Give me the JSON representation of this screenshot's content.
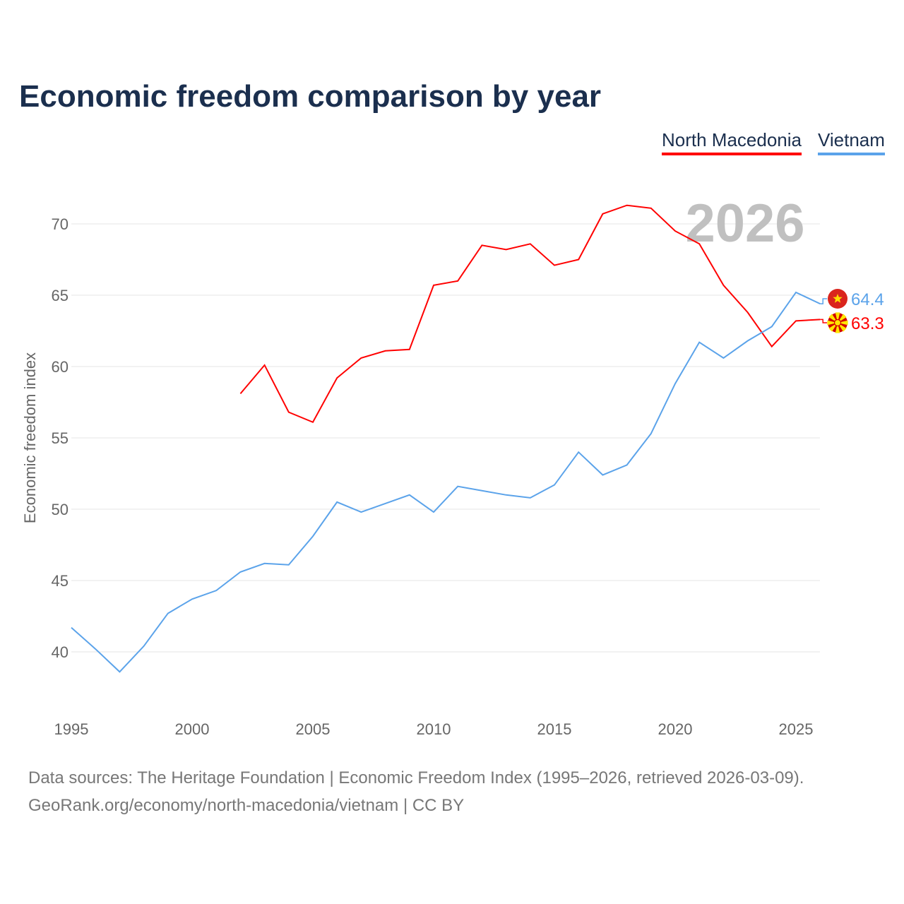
{
  "chart_data": {
    "type": "line",
    "title": "Economic freedom comparison by year",
    "xlabel": "",
    "ylabel": "Economic freedom index",
    "year_label": "2026",
    "xlim": [
      1995,
      2026
    ],
    "ylim": [
      36,
      73
    ],
    "x_ticks": [
      1995,
      2000,
      2005,
      2010,
      2015,
      2020,
      2025
    ],
    "y_ticks": [
      40,
      45,
      50,
      55,
      60,
      65,
      70
    ],
    "grid": true,
    "legend_position": "top-right",
    "series": [
      {
        "name": "North Macedonia",
        "color": "#ff0000",
        "end_label": "63.3",
        "flag": "north-macedonia-flag",
        "x": [
          2002,
          2003,
          2004,
          2005,
          2006,
          2007,
          2008,
          2009,
          2010,
          2011,
          2012,
          2013,
          2014,
          2015,
          2016,
          2017,
          2018,
          2019,
          2020,
          2021,
          2022,
          2023,
          2024,
          2025,
          2026
        ],
        "values": [
          58.1,
          60.1,
          56.8,
          56.1,
          59.2,
          60.6,
          61.1,
          61.2,
          65.7,
          66.0,
          68.5,
          68.2,
          68.6,
          67.1,
          67.5,
          70.7,
          71.3,
          71.1,
          69.5,
          68.6,
          65.7,
          63.8,
          61.4,
          63.2,
          63.3
        ]
      },
      {
        "name": "Vietnam",
        "color": "#5ba3ea",
        "end_label": "64.4",
        "flag": "vietnam-flag",
        "x": [
          1995,
          1996,
          1997,
          1998,
          1999,
          2000,
          2001,
          2002,
          2003,
          2004,
          2005,
          2006,
          2007,
          2008,
          2009,
          2010,
          2011,
          2012,
          2013,
          2014,
          2015,
          2016,
          2017,
          2018,
          2019,
          2020,
          2021,
          2022,
          2023,
          2024,
          2025,
          2026
        ],
        "values": [
          41.7,
          40.2,
          38.6,
          40.4,
          42.7,
          43.7,
          44.3,
          45.6,
          46.2,
          46.1,
          48.1,
          50.5,
          49.8,
          50.4,
          51.0,
          49.8,
          51.6,
          51.3,
          51.0,
          50.8,
          51.7,
          54.0,
          52.4,
          53.1,
          55.3,
          58.8,
          61.7,
          60.6,
          61.8,
          62.8,
          65.2,
          64.4
        ]
      }
    ]
  },
  "footer": {
    "line1": "Data sources: The Heritage Foundation | Economic Freedom Index (1995–2026, retrieved 2026-03-09).",
    "line2": "GeoRank.org/economy/north-macedonia/vietnam | CC BY"
  }
}
